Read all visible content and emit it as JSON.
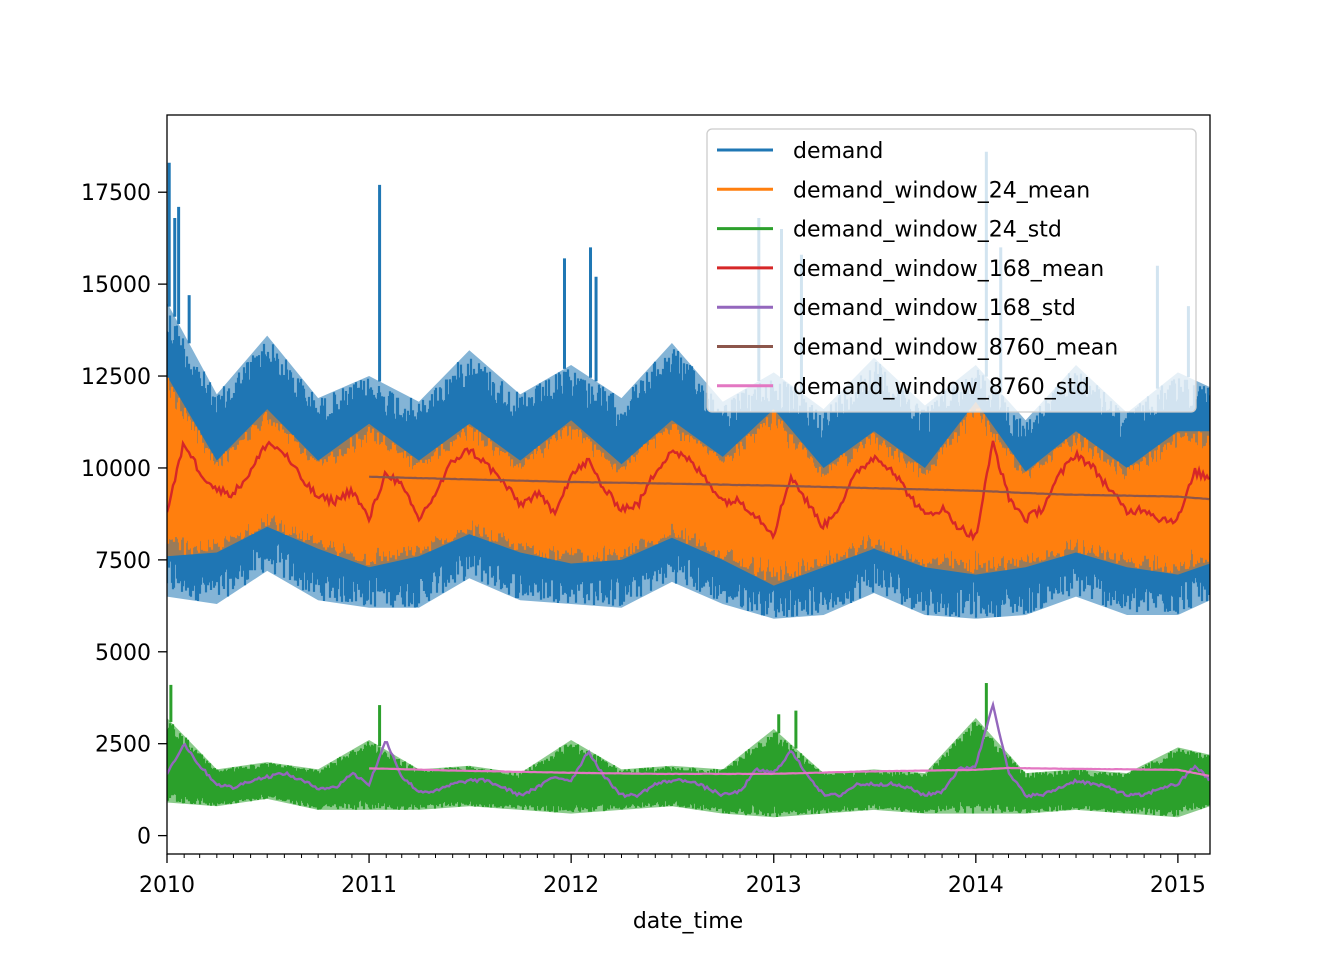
{
  "chart_data": {
    "type": "line",
    "title": "",
    "xlabel": "date_time",
    "ylabel": "",
    "xlim": [
      "2010-01-01",
      "2015-02-28"
    ],
    "ylim": [
      -500,
      19600
    ],
    "x_ticks": [
      {
        "value": "2010-01-01",
        "label": "2010"
      },
      {
        "value": "2011-01-01",
        "label": "2011"
      },
      {
        "value": "2012-01-01",
        "label": "2012"
      },
      {
        "value": "2013-01-01",
        "label": "2013"
      },
      {
        "value": "2014-01-01",
        "label": "2014"
      },
      {
        "value": "2015-01-01",
        "label": "2015"
      }
    ],
    "y_ticks": [
      {
        "value": 0,
        "label": "0"
      },
      {
        "value": 2500,
        "label": "2500"
      },
      {
        "value": 5000,
        "label": "5000"
      },
      {
        "value": 7500,
        "label": "7500"
      },
      {
        "value": 10000,
        "label": "10000"
      },
      {
        "value": 12500,
        "label": "12500"
      },
      {
        "value": 15000,
        "label": "15000"
      },
      {
        "value": 17500,
        "label": "17500"
      }
    ],
    "grid": false,
    "legend_position": "top-right",
    "series": [
      {
        "name": "demand",
        "color": "#1f77b4",
        "style": "band",
        "x": [
          "2010-01-01",
          "2010-04-01",
          "2010-07-01",
          "2010-10-01",
          "2011-01-01",
          "2011-04-01",
          "2011-07-01",
          "2011-10-01",
          "2012-01-01",
          "2012-04-01",
          "2012-07-01",
          "2012-10-01",
          "2013-01-01",
          "2013-04-01",
          "2013-07-01",
          "2013-10-01",
          "2014-01-01",
          "2014-04-01",
          "2014-07-01",
          "2014-10-01",
          "2015-01-01",
          "2015-02-28"
        ],
        "high": [
          14500,
          12000,
          13600,
          11900,
          12500,
          11800,
          13200,
          12000,
          12800,
          11900,
          13400,
          11800,
          12600,
          11600,
          13000,
          11700,
          12800,
          11300,
          12800,
          11500,
          12600,
          12200
        ],
        "low": [
          6500,
          6300,
          7200,
          6400,
          6200,
          6200,
          7000,
          6400,
          6300,
          6200,
          6900,
          6300,
          5900,
          6000,
          6600,
          6000,
          5900,
          6000,
          6500,
          6000,
          6000,
          6400
        ],
        "spikes": [
          {
            "x": "2010-01-05",
            "y": 18300
          },
          {
            "x": "2010-01-15",
            "y": 16800
          },
          {
            "x": "2010-01-22",
            "y": 17100
          },
          {
            "x": "2010-02-10",
            "y": 14700
          },
          {
            "x": "2011-01-20",
            "y": 17700
          },
          {
            "x": "2011-12-20",
            "y": 15700
          },
          {
            "x": "2012-02-05",
            "y": 16000
          },
          {
            "x": "2012-02-15",
            "y": 15200
          },
          {
            "x": "2012-12-05",
            "y": 16800
          },
          {
            "x": "2013-01-15",
            "y": 16500
          },
          {
            "x": "2013-02-20",
            "y": 15800
          },
          {
            "x": "2014-01-20",
            "y": 18600
          },
          {
            "x": "2014-02-15",
            "y": 16000
          },
          {
            "x": "2014-11-25",
            "y": 15500
          },
          {
            "x": "2015-01-20",
            "y": 14400
          }
        ]
      },
      {
        "name": "demand_window_24_mean",
        "color": "#ff7f0e",
        "style": "band",
        "x": [
          "2010-01-01",
          "2010-04-01",
          "2010-07-01",
          "2010-10-01",
          "2011-01-01",
          "2011-04-01",
          "2011-07-01",
          "2011-10-01",
          "2012-01-01",
          "2012-04-01",
          "2012-07-01",
          "2012-10-01",
          "2013-01-01",
          "2013-04-01",
          "2013-07-01",
          "2013-10-01",
          "2014-01-01",
          "2014-04-01",
          "2014-07-01",
          "2014-10-01",
          "2015-01-01",
          "2015-02-28"
        ],
        "high": [
          12500,
          10200,
          11600,
          10200,
          11200,
          10200,
          11200,
          10200,
          11300,
          10100,
          11300,
          10300,
          11600,
          10000,
          11000,
          10000,
          11800,
          9900,
          11000,
          10000,
          11000,
          11000
        ],
        "low": [
          7600,
          7700,
          8400,
          7800,
          7300,
          7600,
          8200,
          7700,
          7400,
          7500,
          8100,
          7500,
          6800,
          7300,
          7800,
          7300,
          7100,
          7300,
          7700,
          7300,
          7100,
          7400
        ]
      },
      {
        "name": "demand_window_24_std",
        "color": "#2ca02c",
        "style": "band",
        "x": [
          "2010-01-01",
          "2010-04-01",
          "2010-07-01",
          "2010-10-01",
          "2011-01-01",
          "2011-04-01",
          "2011-07-01",
          "2011-10-01",
          "2012-01-01",
          "2012-04-01",
          "2012-07-01",
          "2012-10-01",
          "2013-01-01",
          "2013-04-01",
          "2013-07-01",
          "2013-10-01",
          "2014-01-01",
          "2014-04-01",
          "2014-07-01",
          "2014-10-01",
          "2015-01-01",
          "2015-02-28"
        ],
        "high": [
          3200,
          1800,
          2000,
          1800,
          2600,
          1800,
          1900,
          1700,
          2600,
          1800,
          1900,
          1800,
          2900,
          1700,
          1800,
          1700,
          3200,
          1700,
          1800,
          1700,
          2400,
          2200
        ],
        "low": [
          900,
          800,
          1000,
          700,
          700,
          700,
          800,
          700,
          600,
          700,
          800,
          600,
          500,
          600,
          700,
          600,
          600,
          600,
          700,
          600,
          500,
          800
        ],
        "spikes": [
          {
            "x": "2010-01-08",
            "y": 4100
          },
          {
            "x": "2011-01-20",
            "y": 3550
          },
          {
            "x": "2013-01-10",
            "y": 3300
          },
          {
            "x": "2013-02-10",
            "y": 3400
          },
          {
            "x": "2014-01-20",
            "y": 4150
          }
        ]
      },
      {
        "name": "demand_window_168_mean",
        "color": "#d62728",
        "style": "line",
        "x": [
          "2010-01-01",
          "2010-02-01",
          "2010-03-01",
          "2010-04-01",
          "2010-05-01",
          "2010-06-01",
          "2010-07-01",
          "2010-08-01",
          "2010-09-01",
          "2010-10-01",
          "2010-11-01",
          "2010-12-01",
          "2011-01-01",
          "2011-02-01",
          "2011-03-01",
          "2011-04-01",
          "2011-05-01",
          "2011-06-01",
          "2011-07-01",
          "2011-08-01",
          "2011-09-01",
          "2011-10-01",
          "2011-11-01",
          "2011-12-01",
          "2012-01-01",
          "2012-02-01",
          "2012-03-01",
          "2012-04-01",
          "2012-05-01",
          "2012-06-01",
          "2012-07-01",
          "2012-08-01",
          "2012-09-01",
          "2012-10-01",
          "2012-11-01",
          "2012-12-01",
          "2013-01-01",
          "2013-02-01",
          "2013-03-01",
          "2013-04-01",
          "2013-05-01",
          "2013-06-01",
          "2013-07-01",
          "2013-08-01",
          "2013-09-01",
          "2013-10-01",
          "2013-11-01",
          "2013-12-01",
          "2014-01-01",
          "2014-02-01",
          "2014-03-01",
          "2014-04-01",
          "2014-05-01",
          "2014-06-01",
          "2014-07-01",
          "2014-08-01",
          "2014-09-01",
          "2014-10-01",
          "2014-11-01",
          "2014-12-01",
          "2015-01-01",
          "2015-02-01",
          "2015-02-28"
        ],
        "y": [
          8800,
          10700,
          9900,
          9400,
          9300,
          9900,
          10700,
          10400,
          9700,
          9200,
          9100,
          9400,
          8600,
          9900,
          9500,
          8600,
          9300,
          10200,
          10500,
          10100,
          9600,
          9000,
          9300,
          8800,
          9800,
          10200,
          9400,
          8900,
          9000,
          9900,
          10500,
          10200,
          9700,
          9100,
          9100,
          8700,
          8200,
          9800,
          9100,
          8400,
          9000,
          9900,
          10300,
          10000,
          9300,
          8700,
          8900,
          8400,
          8100,
          10700,
          9200,
          8600,
          8900,
          9800,
          10400,
          10000,
          9400,
          8800,
          8900,
          8600,
          8600,
          9900,
          9700
        ]
      },
      {
        "name": "demand_window_168_std",
        "color": "#9467bd",
        "style": "line",
        "x": [
          "2010-01-01",
          "2010-02-01",
          "2010-03-01",
          "2010-04-01",
          "2010-05-01",
          "2010-06-01",
          "2010-07-01",
          "2010-08-01",
          "2010-09-01",
          "2010-10-01",
          "2010-11-01",
          "2010-12-01",
          "2011-01-01",
          "2011-02-01",
          "2011-03-01",
          "2011-04-01",
          "2011-05-01",
          "2011-06-01",
          "2011-07-01",
          "2011-08-01",
          "2011-09-01",
          "2011-10-01",
          "2011-11-01",
          "2011-12-01",
          "2012-01-01",
          "2012-02-01",
          "2012-03-01",
          "2012-04-01",
          "2012-05-01",
          "2012-06-01",
          "2012-07-01",
          "2012-08-01",
          "2012-09-01",
          "2012-10-01",
          "2012-11-01",
          "2012-12-01",
          "2013-01-01",
          "2013-02-01",
          "2013-03-01",
          "2013-04-01",
          "2013-05-01",
          "2013-06-01",
          "2013-07-01",
          "2013-08-01",
          "2013-09-01",
          "2013-10-01",
          "2013-11-01",
          "2013-12-01",
          "2014-01-01",
          "2014-02-01",
          "2014-03-01",
          "2014-04-01",
          "2014-05-01",
          "2014-06-01",
          "2014-07-01",
          "2014-08-01",
          "2014-09-01",
          "2014-10-01",
          "2014-11-01",
          "2014-12-01",
          "2015-01-01",
          "2015-02-01",
          "2015-02-28"
        ],
        "y": [
          1700,
          2500,
          1900,
          1400,
          1300,
          1500,
          1600,
          1700,
          1500,
          1300,
          1300,
          1700,
          1400,
          2600,
          1600,
          1200,
          1200,
          1400,
          1500,
          1500,
          1300,
          1100,
          1300,
          1600,
          1500,
          2300,
          1600,
          1100,
          1100,
          1400,
          1500,
          1500,
          1300,
          1100,
          1200,
          1800,
          1700,
          2300,
          1700,
          1100,
          1100,
          1400,
          1400,
          1400,
          1300,
          1100,
          1200,
          1800,
          1900,
          3600,
          1700,
          1100,
          1100,
          1300,
          1500,
          1400,
          1300,
          1100,
          1100,
          1300,
          1400,
          1900,
          1500
        ]
      },
      {
        "name": "demand_window_8760_mean",
        "color": "#8c564b",
        "style": "line",
        "x": [
          "2011-01-01",
          "2011-06-01",
          "2012-01-01",
          "2012-06-01",
          "2013-01-01",
          "2013-06-01",
          "2014-01-01",
          "2014-06-01",
          "2015-01-01",
          "2015-02-28"
        ],
        "y": [
          9760,
          9700,
          9620,
          9580,
          9520,
          9460,
          9380,
          9280,
          9220,
          9150
        ]
      },
      {
        "name": "demand_window_8760_std",
        "color": "#e377c2",
        "style": "line",
        "x": [
          "2011-01-01",
          "2011-06-01",
          "2012-01-01",
          "2012-06-01",
          "2013-01-01",
          "2013-06-01",
          "2014-01-01",
          "2014-03-01",
          "2014-06-01",
          "2015-01-01",
          "2015-02-28"
        ],
        "y": [
          1830,
          1770,
          1710,
          1680,
          1680,
          1740,
          1790,
          1840,
          1820,
          1790,
          1620
        ]
      }
    ]
  }
}
